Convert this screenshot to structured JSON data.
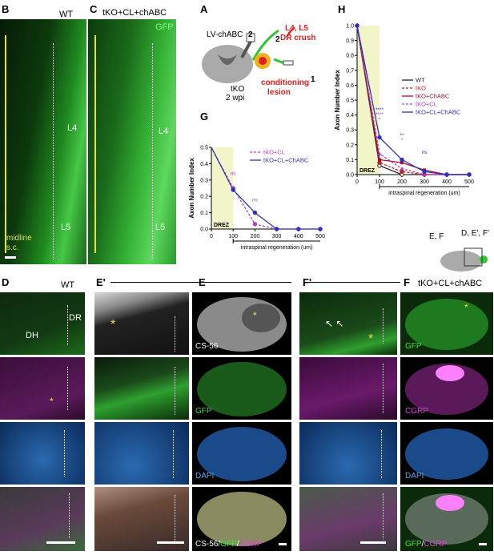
{
  "panels": {
    "B": {
      "letter": "B",
      "condition": "WT",
      "l4": "L4",
      "l5": "L5",
      "midline": "midline",
      "sc": "s.c."
    },
    "C": {
      "letter": "C",
      "condition": "tKO+CL+chABC",
      "gfp": "GFP",
      "l4": "L4",
      "l5": "L5"
    },
    "A": {
      "letter": "A",
      "lv": "LV-chABC",
      "num2a": "2",
      "num2b": "2",
      "crush1": "L4, L5",
      "crush2": "DR crush",
      "tko": "tKO",
      "wpi": "2 wpi",
      "cond1": "conditioning",
      "cond2": "lesion",
      "num1": "1"
    },
    "D": {
      "letter": "D",
      "condition": "WT",
      "dh": "DH",
      "dr": "DR"
    },
    "Eprime": {
      "letter": "E'"
    },
    "E": {
      "letter": "E",
      "cs56": "CS-56",
      "gfp": "GFP",
      "dapi": "DAPI",
      "merge_cs": "CS-56/",
      "merge_gfp": "GFP",
      "merge_slash": "/",
      "merge_cgrp": "CGRP"
    },
    "Fprime": {
      "letter": "F'"
    },
    "F": {
      "letter": "F",
      "condition": "tKO+CL+chABC",
      "gfp": "GFP",
      "cgrp": "CGRP",
      "dapi": "DAPI",
      "merge_gfp": "GFP",
      "merge_slash": "/",
      "merge_cgrp": "CGRP"
    },
    "inset": {
      "ef": "E, F",
      "def": "D, E', F'"
    }
  },
  "chart_data": [
    {
      "panel": "G",
      "type": "line",
      "ylabel": "Axon  Number Index",
      "xlabel": "intraspinal regeneration (um)",
      "drez": "DREZ",
      "xticks": [
        0,
        100,
        200,
        300,
        400,
        500
      ],
      "yticks": [
        0,
        0.1,
        0.2,
        0.3,
        0.4,
        0.5
      ],
      "ylim": [
        0,
        0.5
      ],
      "xlim": [
        0,
        500
      ],
      "annotations": [
        {
          "x": 100,
          "text": "ns"
        },
        {
          "x": 200,
          "text": "ns"
        }
      ],
      "series": [
        {
          "name": "tKO+CL",
          "color": "#b040c8",
          "dashed": true,
          "x": [
            0,
            100,
            200,
            300,
            400,
            500
          ],
          "y": [
            1.0,
            0.25,
            0.03,
            0,
            0,
            0
          ]
        },
        {
          "name": "tKO+CL+ChABC",
          "color": "#3030c0",
          "dashed": false,
          "x": [
            0,
            100,
            200,
            300,
            400,
            500
          ],
          "y": [
            1.0,
            0.24,
            0.1,
            0,
            0,
            0
          ]
        }
      ]
    },
    {
      "panel": "H",
      "type": "line",
      "ylabel": "Axon Number Index",
      "xlabel": "intraspinal regeneration (um)",
      "drez": "DREZ",
      "xticks": [
        0,
        100,
        200,
        300,
        400,
        500
      ],
      "yticks": [
        0,
        0.1,
        0.2,
        0.3,
        0.4,
        0.5,
        0.6,
        0.7,
        0.8,
        0.9,
        1.0
      ],
      "ylim": [
        0,
        1.0
      ],
      "xlim": [
        0,
        500
      ],
      "annotations": [
        {
          "x": 100,
          "text": "*",
          "color": "#b040c8"
        },
        {
          "x": 100,
          "text": "****",
          "color": "#b040c8"
        },
        {
          "x": 100,
          "text": "****",
          "color": "#3030c0"
        },
        {
          "x": 200,
          "text": "*",
          "color": "#b040c8"
        },
        {
          "x": 200,
          "text": "**",
          "color": "#3030c0"
        },
        {
          "x": 300,
          "text": "ns",
          "color": "#3030c0"
        }
      ],
      "series": [
        {
          "name": "WT",
          "color": "#222222",
          "dashed": false,
          "marker": "circle-open",
          "x": [
            0,
            100,
            200,
            300,
            400,
            500
          ],
          "y": [
            1.0,
            0.06,
            0,
            0,
            0,
            0
          ]
        },
        {
          "name": "tKO",
          "color": "#c02020",
          "dashed": true,
          "marker": "circle",
          "x": [
            0,
            100,
            200,
            300,
            400,
            500
          ],
          "y": [
            1.0,
            0.08,
            0.02,
            0,
            0,
            0
          ]
        },
        {
          "name": "tKO+ChABC",
          "color": "#a01030",
          "dashed": false,
          "marker": "square",
          "x": [
            0,
            100,
            200,
            300,
            400,
            500
          ],
          "y": [
            1.0,
            0.1,
            0.08,
            0.03,
            0,
            0
          ]
        },
        {
          "name": "tKO+CL",
          "color": "#b040c8",
          "dashed": true,
          "marker": "triangle",
          "x": [
            0,
            100,
            200,
            300,
            400,
            500
          ],
          "y": [
            1.0,
            0.14,
            0.04,
            0,
            0,
            0
          ]
        },
        {
          "name": "tKO+CL+ChABC",
          "color": "#3030c0",
          "dashed": false,
          "marker": "circle",
          "x": [
            0,
            100,
            200,
            300,
            400,
            500
          ],
          "y": [
            1.0,
            0.25,
            0.1,
            0.02,
            0,
            0
          ]
        }
      ]
    }
  ]
}
